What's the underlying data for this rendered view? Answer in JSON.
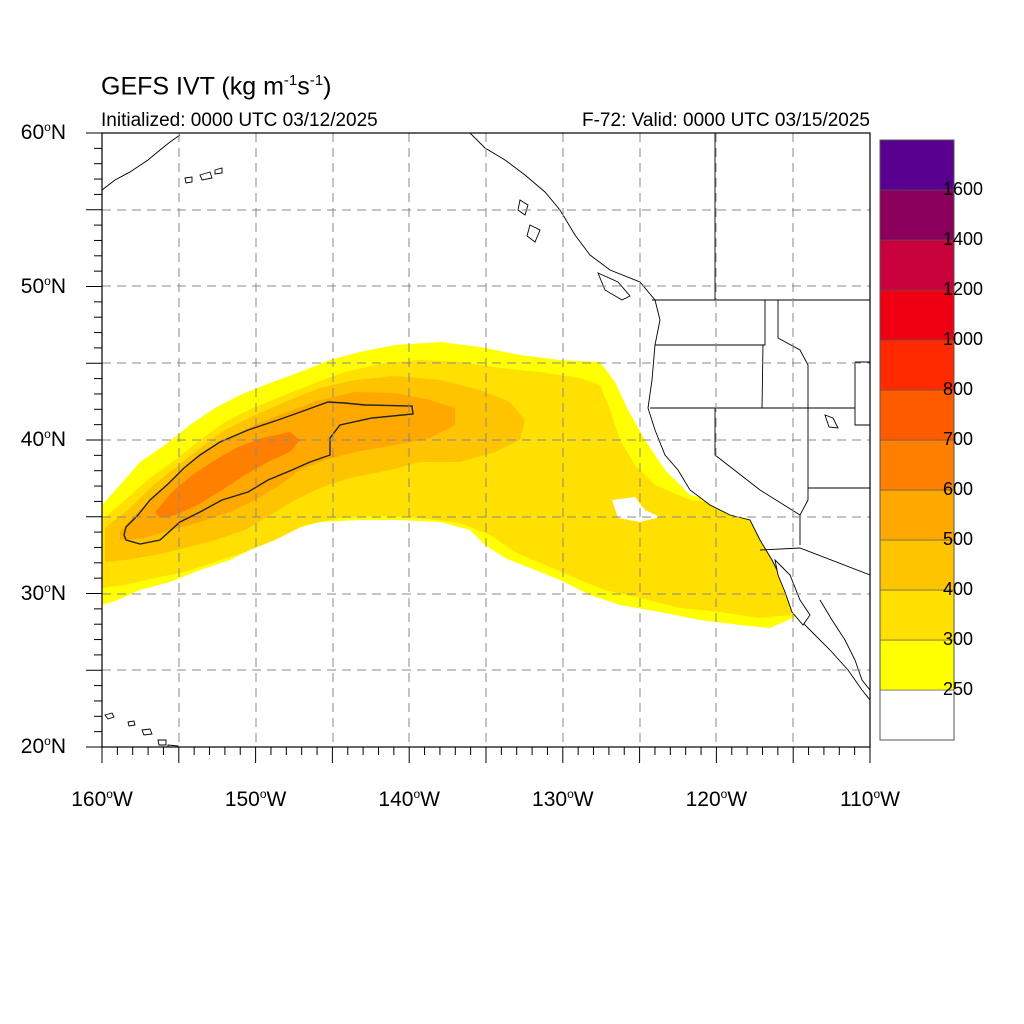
{
  "title": {
    "main": "GEFS IVT (kg m",
    "exp1": "-1",
    "mid": "s",
    "exp2": "-1",
    "close": ")"
  },
  "subtitle": {
    "initialized": "Initialized: 0000 UTC 03/12/2025",
    "valid": "F-72: Valid: 0000 UTC 03/15/2025"
  },
  "axes": {
    "lat_labels": [
      {
        "deg": "60",
        "hemi": "N"
      },
      {
        "deg": "50",
        "hemi": "N"
      },
      {
        "deg": "40",
        "hemi": "N"
      },
      {
        "deg": "30",
        "hemi": "N"
      },
      {
        "deg": "20",
        "hemi": "N"
      }
    ],
    "lon_labels": [
      {
        "deg": "160",
        "hemi": "W"
      },
      {
        "deg": "150",
        "hemi": "W"
      },
      {
        "deg": "140",
        "hemi": "W"
      },
      {
        "deg": "130",
        "hemi": "W"
      },
      {
        "deg": "120",
        "hemi": "W"
      },
      {
        "deg": "110",
        "hemi": "W"
      }
    ]
  },
  "colorbar": {
    "labels": [
      "1600",
      "1400",
      "1200",
      "1000",
      "800",
      "700",
      "600",
      "500",
      "400",
      "300",
      "250"
    ],
    "colors": [
      "#ffffff",
      "#ffff00",
      "#ffe000",
      "#ffc400",
      "#ffa800",
      "#ff8000",
      "#ff5c00",
      "#ff2a00",
      "#ee0012",
      "#c8003c",
      "#8c005c",
      "#5a0090"
    ]
  },
  "map": {
    "lon_range": [
      -160,
      -110
    ],
    "lat_range": [
      20,
      60
    ],
    "grid_step_deg": 5,
    "ivt_colors": {
      "c250": "#ffff00",
      "c300": "#ffe000",
      "c400": "#ffc400",
      "c500": "#ffa800",
      "c600": "#ff8000"
    }
  }
}
